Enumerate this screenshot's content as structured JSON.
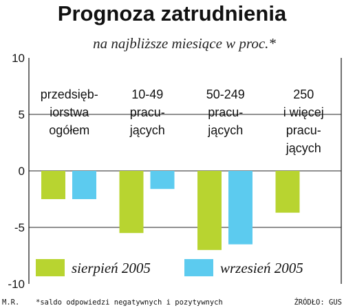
{
  "chart_data": {
    "type": "bar",
    "title": "Prognoza zatrudnienia",
    "subtitle": "na najbliższe miesiące w proc.*",
    "categories": [
      [
        "przedsięb-",
        "iorstwa",
        "ogółem"
      ],
      [
        "10-49",
        "pracu-",
        "jących"
      ],
      [
        "50-249",
        "pracu-",
        "jących"
      ],
      [
        "250",
        "i więcej",
        "pracu-",
        "jących"
      ]
    ],
    "series": [
      {
        "name": "sierpień 2005",
        "color": "#b8d430",
        "values": [
          -2.5,
          -5.5,
          -7.0,
          -3.7
        ]
      },
      {
        "name": "wrzesień 2005",
        "color": "#5ccbef",
        "values": [
          -2.5,
          -1.6,
          -6.5,
          null
        ]
      }
    ],
    "ylim": [
      -10,
      10
    ],
    "yticks": [
      -10,
      -5,
      0,
      5,
      10
    ],
    "grid": true,
    "legend": "bottom"
  },
  "footer": {
    "author": "M.R.",
    "note": "*saldo odpowiedzi negatywnych i pozytywnych",
    "source": "ŹRÓDŁO: GUS"
  }
}
